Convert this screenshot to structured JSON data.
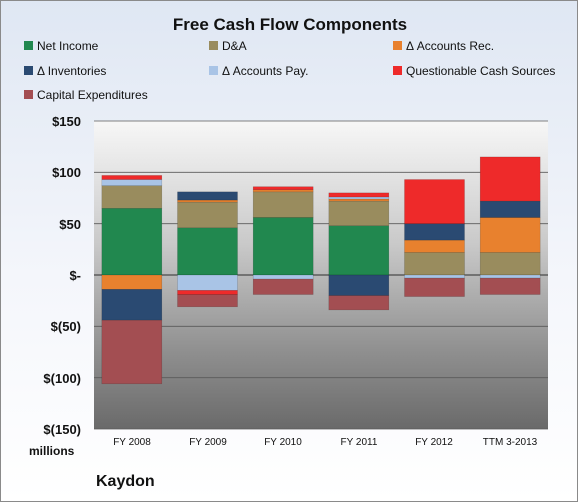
{
  "chart_data": {
    "type": "bar",
    "stacked": true,
    "title": "Free Cash Flow Components",
    "categories": [
      "FY 2008",
      "FY 2009",
      "FY 2010",
      "FY 2011",
      "FY 2012",
      "TTM 3-2013"
    ],
    "series": [
      {
        "name": "Net Income",
        "color": "#21884f",
        "values": [
          65,
          46,
          56,
          48,
          0,
          0
        ]
      },
      {
        "name": "D&A",
        "color": "#998c5e",
        "values": [
          22,
          25,
          25,
          24,
          22,
          22
        ]
      },
      {
        "name": "Δ Accounts Rec.",
        "color": "#e8812e",
        "values": [
          -14,
          2,
          2,
          2,
          12,
          34
        ]
      },
      {
        "name": "Δ Inventories",
        "color": "#2a4a72",
        "values": [
          -30,
          8,
          0,
          -20,
          16,
          16
        ]
      },
      {
        "name": "Δ Accounts Pay.",
        "color": "#a9c4e6",
        "values": [
          6,
          -15,
          -4,
          2,
          -3,
          -3
        ]
      },
      {
        "name": "Questionable Cash Sources",
        "color": "#ee2a2a",
        "values": [
          4,
          -4,
          3,
          4,
          43,
          43
        ]
      },
      {
        "name": "Capital Expenditures",
        "color": "#a34e52",
        "values": [
          -62,
          -12,
          -15,
          -14,
          -18,
          -16
        ]
      }
    ],
    "ylim": [
      -150,
      150
    ],
    "yticks": [
      150,
      100,
      50,
      0,
      -50,
      -100,
      -150
    ],
    "ytick_labels": [
      "$150",
      "$100",
      "$50",
      "$-",
      "$(50)",
      "$(100)",
      "$(150)"
    ],
    "units_label": "millions",
    "grid": true,
    "legend_position": "top"
  },
  "company": "Kaydon"
}
